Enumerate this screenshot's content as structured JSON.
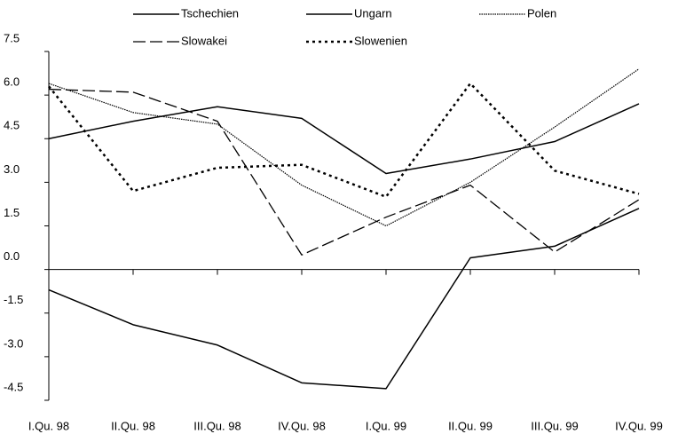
{
  "chart_data": {
    "type": "line",
    "categories": [
      "I.Qu. 98",
      "II.Qu. 98",
      "III.Qu. 98",
      "IV.Qu. 98",
      "I.Qu. 99",
      "II.Qu. 99",
      "III.Qu. 99",
      "IV.Qu. 99"
    ],
    "series": [
      {
        "name": "Tschechien",
        "color": "#000000",
        "dash": "solid",
        "values": [
          -0.7,
          -1.9,
          -2.6,
          -3.9,
          -4.1,
          0.4,
          0.8,
          2.1
        ]
      },
      {
        "name": "Ungarn",
        "color": "#000000",
        "dash": "solid",
        "values": [
          4.5,
          5.1,
          5.6,
          5.2,
          3.3,
          3.8,
          4.4,
          5.7
        ]
      },
      {
        "name": "Polen",
        "color": "#000000",
        "dash": "fine-dotted",
        "values": [
          6.4,
          5.4,
          5.0,
          2.9,
          1.5,
          3.0,
          4.9,
          6.9
        ]
      },
      {
        "name": "Slowakei",
        "color": "#000000",
        "dash": "long-dash",
        "values": [
          6.2,
          6.1,
          5.1,
          0.5,
          1.8,
          2.9,
          0.6,
          2.4
        ]
      },
      {
        "name": "Slowenien",
        "color": "#000000",
        "dash": "bold-dotted",
        "values": [
          6.3,
          2.7,
          3.5,
          3.6,
          2.5,
          6.4,
          3.4,
          2.6
        ]
      }
    ],
    "ylim": [
      -4.5,
      7.5
    ],
    "yticks": [
      {
        "value": 7.5,
        "label": "7.5"
      },
      {
        "value": 6,
        "label": "6.0"
      },
      {
        "value": 4.5,
        "label": "4.5"
      },
      {
        "value": 3,
        "label": "3.0"
      },
      {
        "value": 1.5,
        "label": "1.5"
      },
      {
        "value": 0,
        "label": "0.0"
      },
      {
        "value": -1.5,
        "label": "-1.5"
      },
      {
        "value": -3,
        "label": "-3.0"
      },
      {
        "value": -4.5,
        "label": "-4.5"
      }
    ],
    "grid": false
  }
}
